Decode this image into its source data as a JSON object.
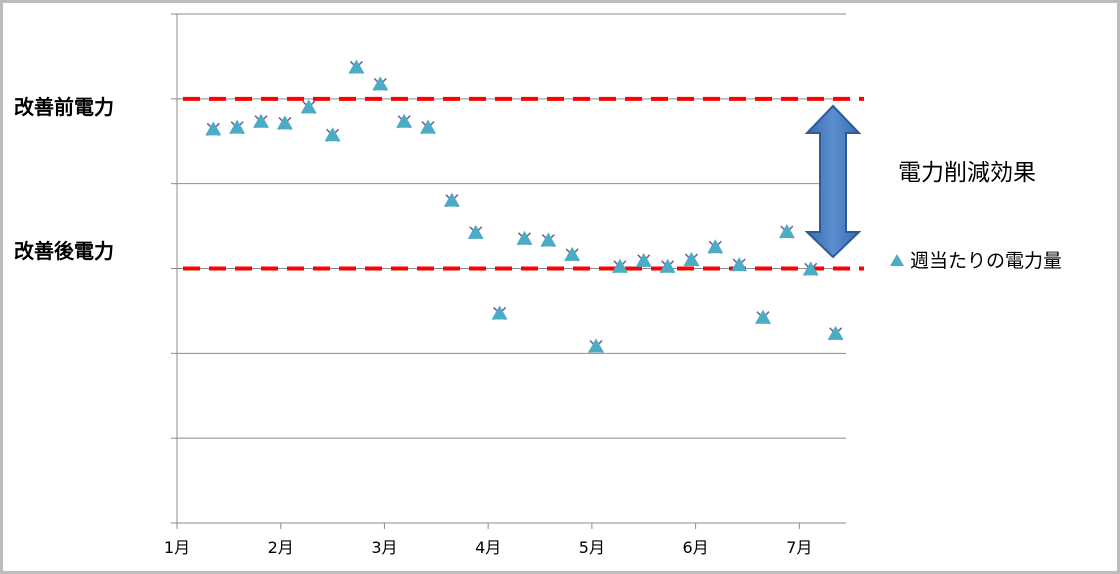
{
  "chart_data": {
    "type": "scatter",
    "x_tick_labels": [
      "1月",
      "2月",
      "3月",
      "4月",
      "5月",
      "6月",
      "7月"
    ],
    "xlim": [
      0,
      6.45
    ],
    "ylim": [
      0,
      6
    ],
    "grid": true,
    "reference_lines": [
      {
        "label": "改善前電力",
        "y": 5.0,
        "color": "#ff0000"
      },
      {
        "label": "改善後電力",
        "y": 3.0,
        "color": "#ff0000"
      }
    ],
    "annotation": "電力削減効果",
    "legend": {
      "position": "right",
      "entries": [
        "週当たりの電力量"
      ]
    },
    "series": [
      {
        "name": "週当たりの電力量",
        "color": "#4bacc6",
        "x": [
          0.35,
          0.58,
          0.81,
          1.04,
          1.27,
          1.5,
          1.73,
          1.96,
          2.19,
          2.42,
          2.65,
          2.88,
          3.11,
          3.35,
          3.58,
          3.81,
          4.04,
          4.27,
          4.5,
          4.73,
          4.96,
          5.19,
          5.42,
          5.65,
          5.88,
          6.11,
          6.35
        ],
        "y": [
          4.64,
          4.66,
          4.73,
          4.71,
          4.9,
          4.57,
          5.37,
          5.17,
          4.73,
          4.66,
          3.8,
          3.42,
          2.47,
          3.35,
          3.33,
          3.16,
          2.08,
          3.02,
          3.09,
          3.02,
          3.1,
          3.25,
          3.04,
          2.42,
          3.43,
          2.99,
          2.23
        ]
      }
    ]
  }
}
